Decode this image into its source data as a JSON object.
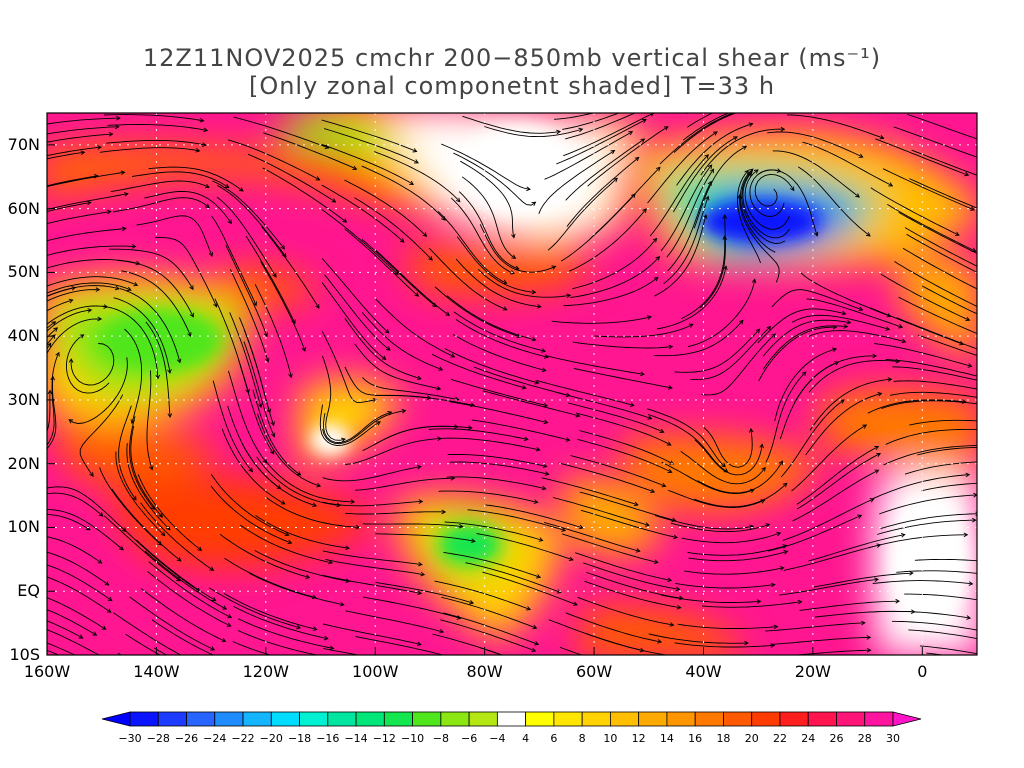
{
  "title": {
    "line1": "12Z11NOV2025 cmchr 200−850mb vertical shear (ms⁻¹)",
    "line2": "[Only zonal componetnt shaded] T=33 h"
  },
  "map": {
    "lat_labels": [
      "70N",
      "60N",
      "50N",
      "40N",
      "30N",
      "20N",
      "10N",
      "EQ",
      "10S"
    ],
    "lat_values": [
      70,
      60,
      50,
      40,
      30,
      20,
      10,
      0,
      -10
    ],
    "lon_labels": [
      "160W",
      "140W",
      "120W",
      "100W",
      "80W",
      "60W",
      "40W",
      "20W",
      "0"
    ],
    "lon_values": [
      -160,
      -140,
      -120,
      -100,
      -80,
      -60,
      -40,
      -20,
      0
    ],
    "lon_range": [
      -160,
      10
    ],
    "lat_range": [
      -10,
      75
    ]
  },
  "colorbar": {
    "labels": [
      "−30",
      "−28",
      "−26",
      "−24",
      "−22",
      "−20",
      "−18",
      "−16",
      "−14",
      "−12",
      "−10",
      "−8",
      "−6",
      "−4",
      "4",
      "6",
      "8",
      "10",
      "12",
      "14",
      "16",
      "18",
      "20",
      "22",
      "24",
      "26",
      "28",
      "30"
    ],
    "colors": [
      "#0a14ff",
      "#1e3cff",
      "#2864ff",
      "#1e8cff",
      "#14b4ff",
      "#00dcff",
      "#00f0d2",
      "#00e6a0",
      "#00e678",
      "#14e650",
      "#50e61e",
      "#8ce614",
      "#b4e614",
      "#ffffff",
      "#ffff00",
      "#ffe600",
      "#ffd200",
      "#ffbe00",
      "#ffaa00",
      "#ff9600",
      "#ff7800",
      "#ff5a00",
      "#ff3c00",
      "#ff1e1e",
      "#ff1450",
      "#ff1478",
      "#ff14a0"
    ],
    "end_low": "#0000ff",
    "end_high": "#ff14c8"
  }
}
